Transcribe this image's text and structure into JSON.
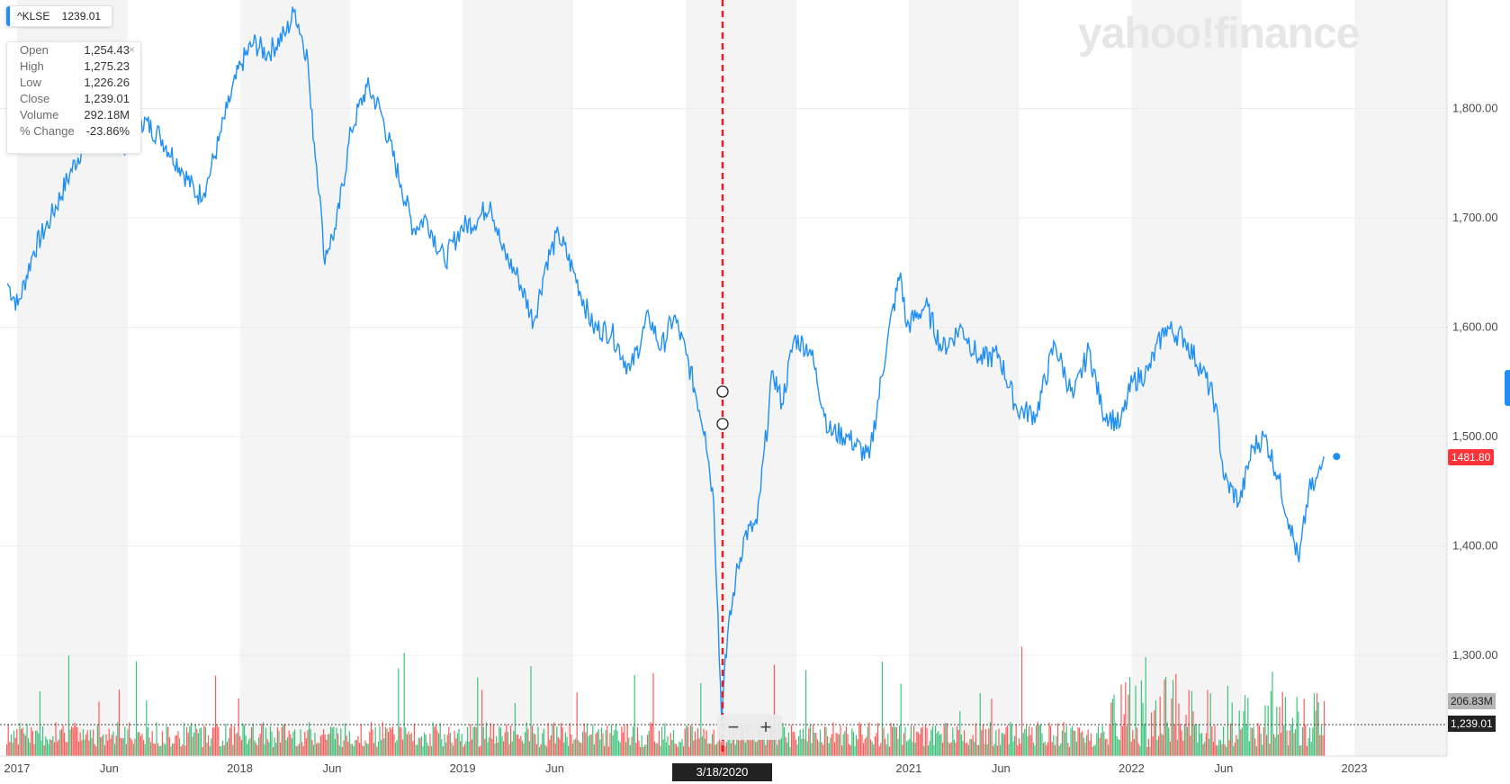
{
  "ticker": {
    "label": "^KLSE",
    "value": "1239.01"
  },
  "watermark": "yahoo!finance",
  "ohlc": {
    "rows": [
      {
        "label": "Open",
        "value": "1,254.43"
      },
      {
        "label": "High",
        "value": "1,275.23"
      },
      {
        "label": "Low",
        "value": "1,226.26"
      },
      {
        "label": "Close",
        "value": "1,239.01"
      },
      {
        "label": "Volume",
        "value": "292.18M"
      },
      {
        "label": "% Change",
        "value": "-23.86%"
      }
    ],
    "close_icon": "close-icon"
  },
  "flags": {
    "last_price": "1481.80",
    "volume": "206.83M",
    "crosshair_close": "1,239.01",
    "crosshair_date": "3/18/2020"
  },
  "zoom": {
    "minus": "−",
    "plus": "+"
  },
  "colors": {
    "line": "#1f8ff5",
    "volume_up": "#3cc47c",
    "volume_down": "#ff5a5a",
    "crosshair": "#e02020",
    "shading": "#f4f4f4"
  },
  "chart_data": {
    "type": "line",
    "y_axis": {
      "range": [
        1200,
        1900
      ],
      "ticks": [
        "1,800.00",
        "1,700.00",
        "1,600.00",
        "1,500.00",
        "1,400.00",
        "1,300.00"
      ]
    },
    "x_axis": {
      "ticks": [
        "2017",
        "Jun",
        "2018",
        "Jun",
        "2019",
        "Jun",
        "2020",
        "2021",
        "Jun",
        "2022",
        "Jun",
        "2023"
      ]
    },
    "price_points": [
      [
        "2017-01-03",
        1640
      ],
      [
        "2017-01-20",
        1620
      ],
      [
        "2017-02-15",
        1670
      ],
      [
        "2017-03-15",
        1700
      ],
      [
        "2017-04-15",
        1740
      ],
      [
        "2017-05-10",
        1770
      ],
      [
        "2017-06-15",
        1775
      ],
      [
        "2017-07-10",
        1765
      ],
      [
        "2017-08-10",
        1790
      ],
      [
        "2017-09-10",
        1775
      ],
      [
        "2017-10-15",
        1745
      ],
      [
        "2017-11-10",
        1720
      ],
      [
        "2017-11-25",
        1730
      ],
      [
        "2017-12-15",
        1770
      ],
      [
        "2017-12-29",
        1800
      ],
      [
        "2018-01-20",
        1840
      ],
      [
        "2018-02-10",
        1860
      ],
      [
        "2018-03-05",
        1850
      ],
      [
        "2018-04-05",
        1870
      ],
      [
        "2018-04-19",
        1890
      ],
      [
        "2018-05-10",
        1845
      ],
      [
        "2018-05-15",
        1800
      ],
      [
        "2018-05-30",
        1720
      ],
      [
        "2018-06-05",
        1665
      ],
      [
        "2018-06-25",
        1690
      ],
      [
        "2018-07-20",
        1780
      ],
      [
        "2018-08-15",
        1820
      ],
      [
        "2018-09-05",
        1800
      ],
      [
        "2018-10-10",
        1730
      ],
      [
        "2018-10-30",
        1690
      ],
      [
        "2018-11-20",
        1700
      ],
      [
        "2018-12-20",
        1660
      ],
      [
        "2019-01-15",
        1690
      ],
      [
        "2019-02-15",
        1700
      ],
      [
        "2019-03-05",
        1715
      ],
      [
        "2019-03-25",
        1670
      ],
      [
        "2019-04-20",
        1645
      ],
      [
        "2019-05-15",
        1605
      ],
      [
        "2019-06-05",
        1660
      ],
      [
        "2019-06-25",
        1685
      ],
      [
        "2019-07-20",
        1650
      ],
      [
        "2019-08-20",
        1600
      ],
      [
        "2019-09-20",
        1595
      ],
      [
        "2019-10-20",
        1560
      ],
      [
        "2019-11-20",
        1610
      ],
      [
        "2019-12-10",
        1580
      ],
      [
        "2019-12-31",
        1610
      ],
      [
        "2020-01-20",
        1575
      ],
      [
        "2020-02-20",
        1505
      ],
      [
        "2020-03-05",
        1440
      ],
      [
        "2020-03-12",
        1340
      ],
      [
        "2020-03-18",
        1240
      ],
      [
        "2020-03-24",
        1300
      ],
      [
        "2020-04-10",
        1370
      ],
      [
        "2020-04-25",
        1410
      ],
      [
        "2020-05-15",
        1420
      ],
      [
        "2020-06-10",
        1560
      ],
      [
        "2020-06-25",
        1530
      ],
      [
        "2020-07-15",
        1590
      ],
      [
        "2020-08-10",
        1580
      ],
      [
        "2020-09-10",
        1505
      ],
      [
        "2020-10-10",
        1500
      ],
      [
        "2020-11-15",
        1480
      ],
      [
        "2020-12-15",
        1590
      ],
      [
        "2021-01-05",
        1650
      ],
      [
        "2021-01-15",
        1600
      ],
      [
        "2021-02-15",
        1620
      ],
      [
        "2021-03-15",
        1580
      ],
      [
        "2021-04-15",
        1600
      ],
      [
        "2021-05-15",
        1570
      ],
      [
        "2021-06-15",
        1575
      ],
      [
        "2021-07-15",
        1525
      ],
      [
        "2021-08-15",
        1520
      ],
      [
        "2021-09-15",
        1585
      ],
      [
        "2021-10-15",
        1535
      ],
      [
        "2021-11-10",
        1580
      ],
      [
        "2021-12-01",
        1525
      ],
      [
        "2021-12-31",
        1510
      ],
      [
        "2022-01-20",
        1550
      ],
      [
        "2022-02-15",
        1560
      ],
      [
        "2022-03-15",
        1600
      ],
      [
        "2022-04-15",
        1590
      ],
      [
        "2022-05-15",
        1560
      ],
      [
        "2022-06-05",
        1530
      ],
      [
        "2022-06-20",
        1460
      ],
      [
        "2022-07-15",
        1440
      ],
      [
        "2022-08-05",
        1490
      ],
      [
        "2022-08-25",
        1500
      ],
      [
        "2022-09-15",
        1465
      ],
      [
        "2022-10-05",
        1420
      ],
      [
        "2022-10-20",
        1385
      ],
      [
        "2022-11-05",
        1450
      ],
      [
        "2022-11-15",
        1455
      ],
      [
        "2022-11-25",
        1470
      ],
      [
        "2022-11-30",
        1481.8
      ]
    ],
    "last_price": 1481.8,
    "crosshair": {
      "date": "2020-03-18",
      "close": 1239.01
    }
  }
}
